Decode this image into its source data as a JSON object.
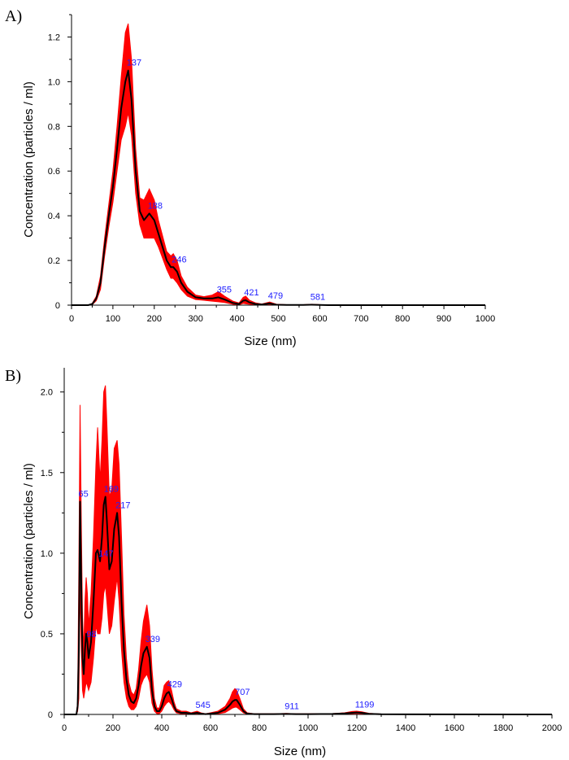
{
  "figure_labels": [
    "A)",
    "B)"
  ],
  "colors": {
    "mean_line": "#000000",
    "error_band": "#ff0000",
    "peak_label": "#2020ff",
    "axis": "#000000"
  },
  "chart_data": [
    {
      "type": "line",
      "panel": "A)",
      "xlabel": "Size (nm)",
      "ylabel": "Concentration (particles / ml)",
      "xlim": [
        0,
        1000
      ],
      "ylim": [
        0,
        1.3
      ],
      "xticks": [
        0,
        100,
        200,
        300,
        400,
        500,
        600,
        700,
        800,
        900,
        1000
      ],
      "xtick_labels": [
        "0",
        "100",
        "200",
        "300",
        "400",
        "500",
        "600",
        "700",
        "800",
        "900",
        "1000"
      ],
      "yticks": [
        0,
        0.2,
        0.4,
        0.6,
        0.8,
        1.0,
        1.2
      ],
      "ytick_labels": [
        "0",
        "0.2",
        "0.4",
        "0.6",
        "0.8",
        "1.0",
        "1.2"
      ],
      "grid": false,
      "series": [
        {
          "name": "mean",
          "x": [
            0,
            40,
            50,
            60,
            70,
            80,
            90,
            100,
            110,
            120,
            130,
            137,
            145,
            155,
            165,
            175,
            188,
            200,
            210,
            220,
            230,
            240,
            246,
            255,
            265,
            280,
            300,
            320,
            340,
            355,
            370,
            390,
            405,
            415,
            421,
            430,
            445,
            460,
            479,
            495,
            520,
            560,
            581,
            620,
            1000
          ],
          "y": [
            0,
            0,
            0.005,
            0.03,
            0.1,
            0.26,
            0.4,
            0.53,
            0.7,
            0.88,
            1.0,
            1.05,
            0.92,
            0.6,
            0.42,
            0.38,
            0.41,
            0.38,
            0.32,
            0.26,
            0.2,
            0.17,
            0.17,
            0.15,
            0.1,
            0.06,
            0.035,
            0.03,
            0.03,
            0.035,
            0.025,
            0.01,
            0.005,
            0.02,
            0.022,
            0.012,
            0.005,
            0.003,
            0.008,
            0.002,
            0.001,
            0.001,
            0.002,
            0,
            0
          ]
        }
      ],
      "error_band": {
        "x": [
          0,
          40,
          50,
          60,
          70,
          80,
          90,
          100,
          110,
          120,
          130,
          137,
          145,
          155,
          165,
          175,
          188,
          200,
          210,
          220,
          230,
          240,
          246,
          255,
          265,
          280,
          300,
          320,
          340,
          355,
          370,
          390,
          405,
          415,
          421,
          430,
          445,
          460,
          479,
          495,
          520,
          560,
          581,
          620,
          1000
        ],
        "upper": [
          0,
          0,
          0.008,
          0.04,
          0.13,
          0.3,
          0.45,
          0.6,
          0.8,
          1.02,
          1.22,
          1.26,
          1.1,
          0.7,
          0.48,
          0.47,
          0.52,
          0.47,
          0.38,
          0.31,
          0.24,
          0.22,
          0.23,
          0.2,
          0.13,
          0.08,
          0.045,
          0.038,
          0.045,
          0.06,
          0.04,
          0.018,
          0.01,
          0.035,
          0.04,
          0.022,
          0.01,
          0.005,
          0.014,
          0.004,
          0.002,
          0.002,
          0.004,
          0,
          0
        ],
        "lower": [
          0,
          0,
          0.002,
          0.02,
          0.07,
          0.22,
          0.35,
          0.46,
          0.6,
          0.74,
          0.8,
          0.86,
          0.76,
          0.5,
          0.36,
          0.3,
          0.3,
          0.3,
          0.26,
          0.21,
          0.16,
          0.12,
          0.12,
          0.1,
          0.07,
          0.04,
          0.025,
          0.022,
          0.018,
          0.015,
          0.012,
          0.004,
          0.002,
          0.008,
          0.006,
          0.004,
          0.002,
          0.001,
          0.003,
          0.001,
          0,
          0,
          0,
          0,
          0
        ]
      },
      "peak_labels": [
        {
          "x": 137,
          "y": 1.05,
          "text": "137"
        },
        {
          "x": 188,
          "y": 0.41,
          "text": "188"
        },
        {
          "x": 246,
          "y": 0.17,
          "text": "246"
        },
        {
          "x": 355,
          "y": 0.035,
          "text": "355"
        },
        {
          "x": 421,
          "y": 0.022,
          "text": "421"
        },
        {
          "x": 479,
          "y": 0.008,
          "text": "479"
        },
        {
          "x": 581,
          "y": 0.002,
          "text": "581"
        }
      ]
    },
    {
      "type": "line",
      "panel": "B)",
      "xlabel": "Size (nm)",
      "ylabel": "Concentration (particles / ml)",
      "xlim": [
        0,
        2000
      ],
      "ylim": [
        0,
        2.15
      ],
      "xticks": [
        0,
        200,
        400,
        600,
        800,
        1000,
        1200,
        1400,
        1600,
        1800,
        2000
      ],
      "xtick_labels": [
        "0",
        "200",
        "400",
        "600",
        "800",
        "1000",
        "1200",
        "1400",
        "1600",
        "1800",
        "2000"
      ],
      "yticks": [
        0,
        0.5,
        1.0,
        1.5,
        2.0
      ],
      "ytick_labels": [
        "0",
        "0.5",
        "1.0",
        "1.5",
        "2.0"
      ],
      "grid": false,
      "series": [
        {
          "name": "mean",
          "x": [
            0,
            50,
            55,
            60,
            65,
            70,
            75,
            80,
            85,
            90,
            95,
            100,
            110,
            120,
            130,
            137,
            147,
            155,
            162,
            169,
            175,
            185,
            195,
            205,
            217,
            225,
            235,
            245,
            255,
            265,
            275,
            285,
            295,
            305,
            315,
            325,
            339,
            350,
            360,
            370,
            380,
            390,
            400,
            410,
            420,
            429,
            440,
            450,
            460,
            480,
            500,
            520,
            545,
            560,
            580,
            600,
            630,
            660,
            680,
            690,
            700,
            707,
            720,
            735,
            750,
            780,
            820,
            860,
            911,
            950,
            1000,
            1100,
            1150,
            1180,
            1199,
            1220,
            1250,
            1300,
            2000
          ],
          "y": [
            0,
            0,
            0.05,
            0.4,
            1.32,
            0.8,
            0.35,
            0.25,
            0.4,
            0.5,
            0.45,
            0.35,
            0.45,
            0.7,
            1.0,
            1.02,
            0.95,
            1.1,
            1.3,
            1.35,
            1.2,
            0.9,
            0.95,
            1.15,
            1.25,
            1.1,
            0.7,
            0.4,
            0.22,
            0.12,
            0.08,
            0.07,
            0.1,
            0.18,
            0.3,
            0.38,
            0.42,
            0.35,
            0.15,
            0.05,
            0.02,
            0.02,
            0.05,
            0.1,
            0.13,
            0.14,
            0.1,
            0.05,
            0.02,
            0.01,
            0.01,
            0.005,
            0.01,
            0.005,
            0.002,
            0.005,
            0.01,
            0.03,
            0.06,
            0.08,
            0.09,
            0.09,
            0.06,
            0.02,
            0.005,
            0.002,
            0.002,
            0.002,
            0.003,
            0.002,
            0.002,
            0.003,
            0.006,
            0.01,
            0.012,
            0.01,
            0.004,
            0.001,
            0
          ]
        }
      ],
      "error_band": {
        "x": [
          0,
          50,
          55,
          60,
          65,
          70,
          75,
          80,
          85,
          90,
          95,
          100,
          110,
          120,
          130,
          137,
          147,
          155,
          162,
          169,
          175,
          185,
          195,
          205,
          217,
          225,
          235,
          245,
          255,
          265,
          275,
          285,
          295,
          305,
          315,
          325,
          339,
          350,
          360,
          370,
          380,
          390,
          400,
          410,
          420,
          429,
          440,
          450,
          460,
          480,
          500,
          520,
          545,
          560,
          580,
          600,
          630,
          660,
          680,
          690,
          700,
          707,
          720,
          735,
          750,
          780,
          820,
          860,
          911,
          950,
          1000,
          1100,
          1150,
          1180,
          1199,
          1220,
          1250,
          1300,
          2000
        ],
        "upper": [
          0,
          0,
          0.08,
          0.9,
          1.92,
          1.2,
          0.6,
          0.4,
          0.7,
          0.85,
          0.75,
          0.55,
          0.75,
          1.1,
          1.55,
          1.78,
          1.45,
          1.7,
          2.0,
          2.04,
          1.8,
          1.35,
          1.4,
          1.65,
          1.7,
          1.55,
          1.1,
          0.62,
          0.35,
          0.2,
          0.14,
          0.12,
          0.16,
          0.28,
          0.45,
          0.58,
          0.68,
          0.55,
          0.28,
          0.1,
          0.04,
          0.04,
          0.1,
          0.18,
          0.2,
          0.21,
          0.15,
          0.08,
          0.035,
          0.02,
          0.02,
          0.01,
          0.02,
          0.01,
          0.004,
          0.01,
          0.02,
          0.05,
          0.1,
          0.14,
          0.16,
          0.15,
          0.1,
          0.035,
          0.01,
          0.004,
          0.004,
          0.004,
          0.006,
          0.004,
          0.004,
          0.005,
          0.01,
          0.018,
          0.02,
          0.016,
          0.007,
          0.002,
          0
        ],
        "lower": [
          0,
          0,
          0.02,
          0.1,
          0.8,
          0.4,
          0.15,
          0.1,
          0.15,
          0.2,
          0.18,
          0.15,
          0.2,
          0.35,
          0.55,
          0.5,
          0.5,
          0.6,
          0.75,
          0.8,
          0.7,
          0.5,
          0.55,
          0.7,
          0.85,
          0.7,
          0.4,
          0.2,
          0.1,
          0.05,
          0.03,
          0.03,
          0.05,
          0.1,
          0.18,
          0.22,
          0.25,
          0.2,
          0.07,
          0.02,
          0.005,
          0.005,
          0.02,
          0.05,
          0.07,
          0.08,
          0.06,
          0.03,
          0.01,
          0.004,
          0.004,
          0.002,
          0.004,
          0.002,
          0.001,
          0.002,
          0.004,
          0.012,
          0.03,
          0.04,
          0.045,
          0.045,
          0.03,
          0.01,
          0.002,
          0.001,
          0.001,
          0.001,
          0.001,
          0.001,
          0.001,
          0.001,
          0.003,
          0.005,
          0.006,
          0.005,
          0.002,
          0,
          0
        ]
      },
      "peak_labels": [
        {
          "x": 65,
          "y": 1.32,
          "text": "65"
        },
        {
          "x": 98,
          "y": 0.45,
          "text": "98"
        },
        {
          "x": 147,
          "y": 0.95,
          "text": "147"
        },
        {
          "x": 169,
          "y": 1.35,
          "text": "169"
        },
        {
          "x": 217,
          "y": 1.25,
          "text": "217"
        },
        {
          "x": 339,
          "y": 0.42,
          "text": "339"
        },
        {
          "x": 429,
          "y": 0.14,
          "text": "429"
        },
        {
          "x": 545,
          "y": 0.01,
          "text": "545"
        },
        {
          "x": 707,
          "y": 0.09,
          "text": "707"
        },
        {
          "x": 911,
          "y": 0.003,
          "text": "911"
        },
        {
          "x": 1199,
          "y": 0.012,
          "text": "1199"
        }
      ]
    }
  ]
}
